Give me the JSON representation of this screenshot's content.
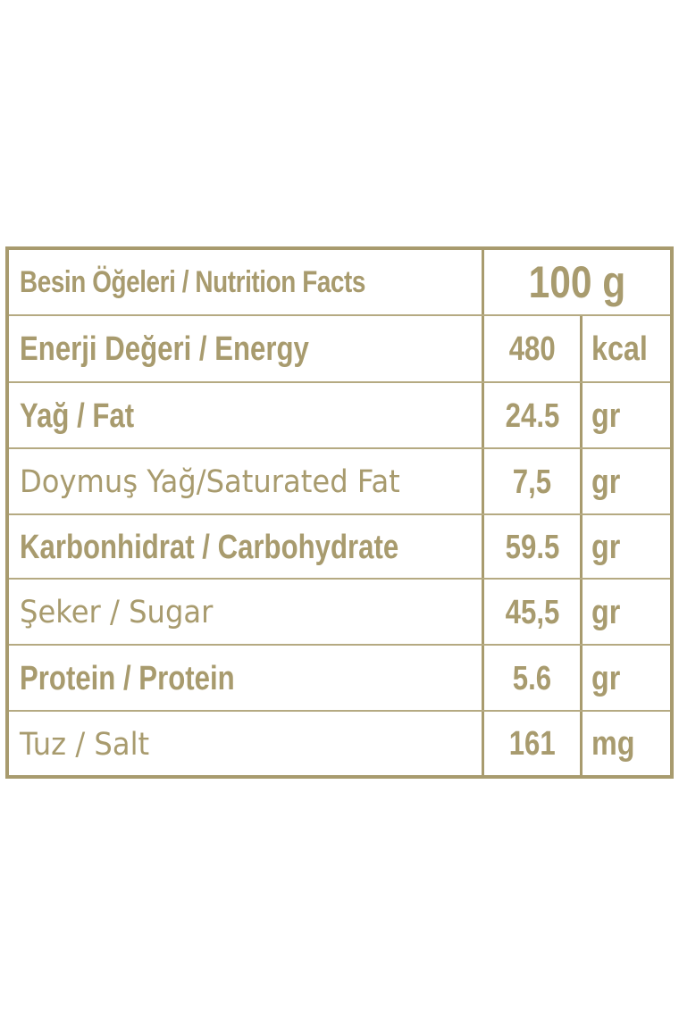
{
  "header": {
    "title": "Besin Öğeleri / Nutrition Facts",
    "portion": "100 g"
  },
  "rows": [
    {
      "label": "Enerji Değeri / Energy",
      "value": "480",
      "unit": "kcal",
      "bold": true
    },
    {
      "label": "Yağ / Fat",
      "value": "24.5",
      "unit": "gr",
      "bold": true
    },
    {
      "label": "Doymuş Yağ/Saturated Fat",
      "value": "7,5",
      "unit": "gr",
      "bold": false
    },
    {
      "label": "Karbonhidrat / Carbohydrate",
      "value": "59.5",
      "unit": "gr",
      "bold": true
    },
    {
      "label": "Şeker / Sugar",
      "value": "45,5",
      "unit": "gr",
      "bold": false
    },
    {
      "label": "Protein / Protein",
      "value": "5.6",
      "unit": "gr",
      "bold": true
    },
    {
      "label": "Tuz / Salt",
      "value": "161",
      "unit": "mg",
      "bold": false
    }
  ],
  "colors": {
    "text": "#a89b6e",
    "border": "#a89b6e"
  }
}
